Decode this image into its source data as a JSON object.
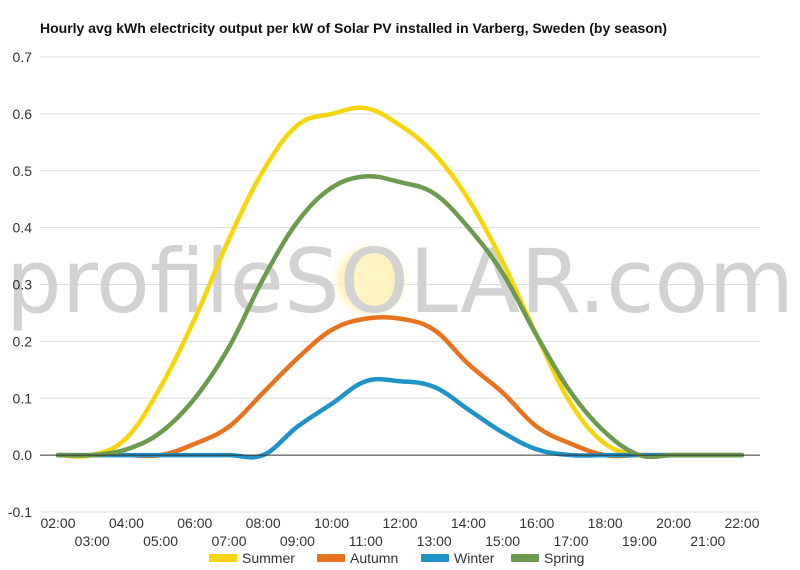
{
  "chart_data": {
    "type": "line",
    "title": "Hourly avg kWh electricity output per kW of Solar PV installed in Varberg, Sweden (by season)",
    "xlabel": "",
    "ylabel": "",
    "ylim": [
      -0.1,
      0.7
    ],
    "yticks": [
      "-0.1",
      "0.0",
      "0.1",
      "0.2",
      "0.3",
      "0.4",
      "0.5",
      "0.6",
      "0.7"
    ],
    "grid": true,
    "legend_position": "bottom",
    "categories": [
      "02:00",
      "03:00",
      "04:00",
      "05:00",
      "06:00",
      "07:00",
      "08:00",
      "09:00",
      "10:00",
      "11:00",
      "12:00",
      "13:00",
      "14:00",
      "15:00",
      "16:00",
      "17:00",
      "18:00",
      "19:00",
      "20:00",
      "21:00",
      "22:00"
    ],
    "series": [
      {
        "name": "Summer",
        "color": "#f5d60a",
        "values": [
          0.0,
          0.0,
          0.03,
          0.12,
          0.24,
          0.38,
          0.5,
          0.58,
          0.6,
          0.61,
          0.58,
          0.53,
          0.45,
          0.34,
          0.21,
          0.09,
          0.02,
          0.0,
          0.0,
          0.0,
          0.0
        ]
      },
      {
        "name": "Autumn",
        "color": "#e8731f",
        "values": [
          0.0,
          0.0,
          0.0,
          0.0,
          0.02,
          0.05,
          0.11,
          0.17,
          0.22,
          0.24,
          0.24,
          0.22,
          0.16,
          0.11,
          0.05,
          0.02,
          0.0,
          0.0,
          0.0,
          0.0,
          0.0
        ]
      },
      {
        "name": "Winter",
        "color": "#1f93c7",
        "values": [
          0.0,
          0.0,
          0.0,
          0.0,
          0.0,
          0.0,
          0.0,
          0.05,
          0.09,
          0.13,
          0.13,
          0.12,
          0.08,
          0.04,
          0.01,
          0.0,
          0.0,
          0.0,
          0.0,
          0.0,
          0.0
        ]
      },
      {
        "name": "Spring",
        "color": "#6e9a4f",
        "values": [
          0.0,
          0.0,
          0.01,
          0.04,
          0.1,
          0.19,
          0.31,
          0.41,
          0.47,
          0.49,
          0.48,
          0.46,
          0.4,
          0.32,
          0.21,
          0.11,
          0.04,
          0.0,
          0.0,
          0.0,
          0.0
        ]
      }
    ],
    "watermark": "profileSOLAR.com"
  }
}
